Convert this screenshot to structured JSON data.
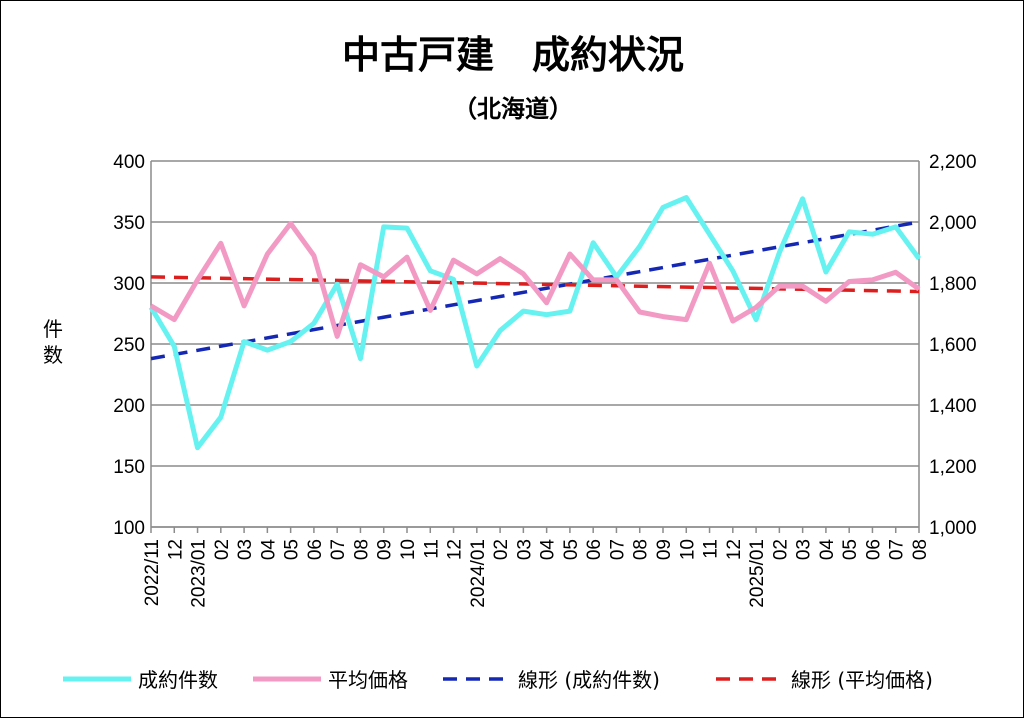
{
  "chart_data": {
    "type": "line",
    "title": "中古戸建　成約状況",
    "subtitle": "（北海道）",
    "ylabel": "件数",
    "y_left": {
      "min": 100,
      "max": 400,
      "step": 50,
      "ticks": [
        "100",
        "150",
        "200",
        "250",
        "300",
        "350",
        "400"
      ]
    },
    "y_right": {
      "min": 1000,
      "max": 2200,
      "step": 200,
      "ticks": [
        "1,000",
        "1,200",
        "1,400",
        "1,600",
        "1,800",
        "2,000",
        "2,200"
      ]
    },
    "grid": true,
    "legend_position": "bottom",
    "x_labels": [
      "2022/11",
      "12",
      "2023/01",
      "02",
      "03",
      "04",
      "05",
      "06",
      "07",
      "08",
      "09",
      "10",
      "11",
      "12",
      "2024/01",
      "02",
      "03",
      "04",
      "05",
      "06",
      "07",
      "08",
      "09",
      "10",
      "11",
      "12",
      "2025/01",
      "02",
      "03",
      "04",
      "05",
      "06",
      "07",
      "08"
    ],
    "series": [
      {
        "name": "成約件数",
        "axis": "left",
        "color": "#66f2f0",
        "style": "solid",
        "values": [
          280,
          248,
          165,
          190,
          252,
          245,
          252,
          267,
          299,
          238,
          346,
          345,
          310,
          303,
          232,
          261,
          277,
          274,
          277,
          333,
          305,
          330,
          362,
          370,
          340,
          310,
          270,
          325,
          369,
          309,
          342,
          340,
          346,
          320
        ]
      },
      {
        "name": "平均価格",
        "axis": "right",
        "color": "#f29ac4",
        "style": "solid",
        "values": [
          1725,
          1680,
          1810,
          1930,
          1725,
          1895,
          1995,
          1890,
          1625,
          1860,
          1820,
          1885,
          1710,
          1875,
          1830,
          1880,
          1830,
          1735,
          1895,
          1810,
          1810,
          1705,
          1690,
          1680,
          1865,
          1675,
          1720,
          1790,
          1790,
          1740,
          1805,
          1810,
          1835,
          1780
        ]
      },
      {
        "name": "線形 (成約件数)",
        "axis": "left",
        "color": "#1428b4",
        "style": "dashed",
        "values": [
          238,
          350
        ]
      },
      {
        "name": "線形 (平均価格)",
        "axis": "right",
        "color": "#dc1e1e",
        "style": "dashed",
        "values": [
          1820,
          1772
        ]
      }
    ]
  }
}
